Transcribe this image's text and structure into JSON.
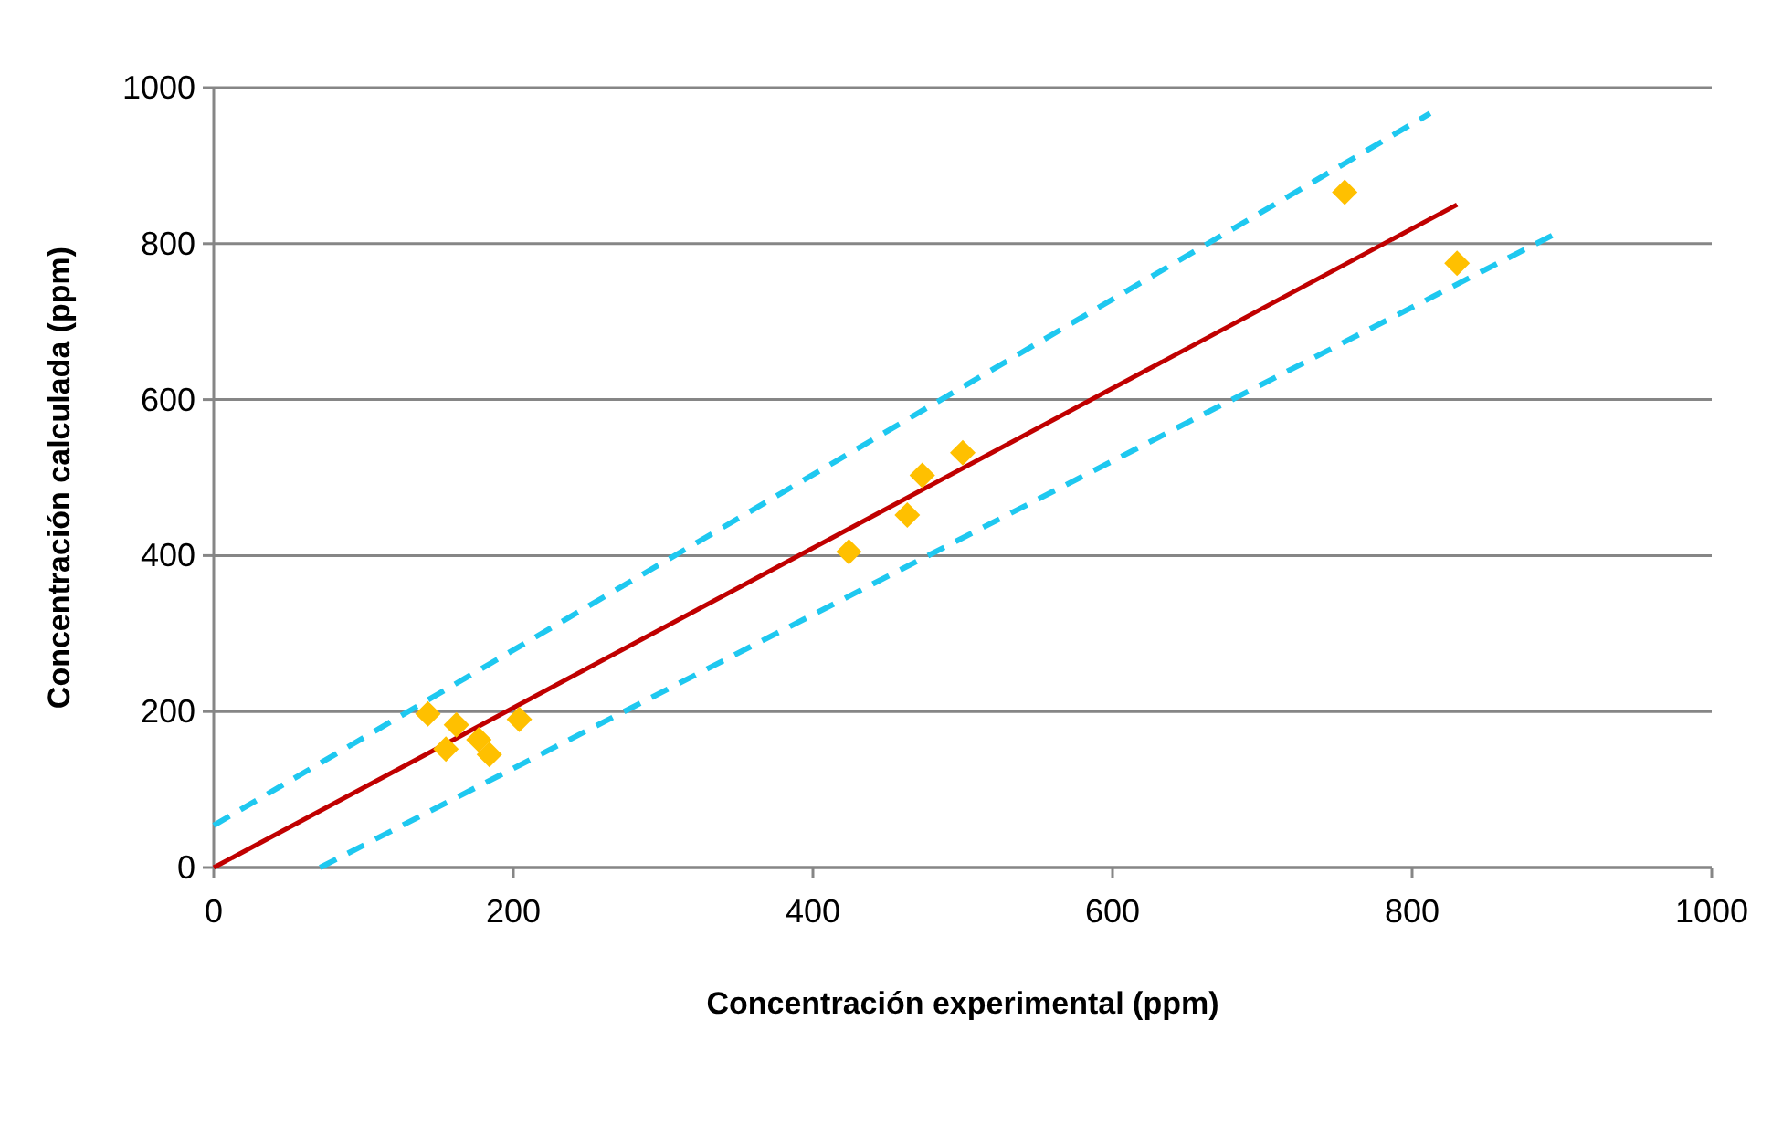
{
  "chart_data": {
    "type": "scatter",
    "xlabel": "Concentración experimental (ppm)",
    "ylabel": "Concentración calculada (ppm)",
    "xlim": [
      0,
      1000
    ],
    "xticks": [
      0,
      200,
      400,
      600,
      800,
      1000
    ],
    "ylim": [
      0,
      1000
    ],
    "yticks": [
      0,
      200,
      400,
      600,
      800,
      1000
    ],
    "grid": "y",
    "series": [
      {
        "type": "line",
        "color": "#c00000",
        "line_style": "solid",
        "marker": "none",
        "x": [
          0,
          830
        ],
        "values": [
          0,
          850
        ]
      },
      {
        "type": "line",
        "color": "#1ec8f0",
        "line_style": "dashed",
        "marker": "none",
        "x": [
          0,
          812
        ],
        "values": [
          54,
          967
        ]
      },
      {
        "type": "line",
        "color": "#1ec8f0",
        "line_style": "dashed",
        "marker": "none",
        "x": [
          71,
          896
        ],
        "values": [
          0,
          813
        ]
      },
      {
        "color": "#ffc000",
        "marker": "diamond",
        "x": [
          143,
          155,
          162,
          177,
          184,
          204,
          424,
          463,
          473,
          500,
          755,
          830
        ],
        "values": [
          197,
          152,
          183,
          164,
          145,
          190,
          405,
          452,
          503,
          532,
          866,
          775
        ]
      }
    ]
  }
}
